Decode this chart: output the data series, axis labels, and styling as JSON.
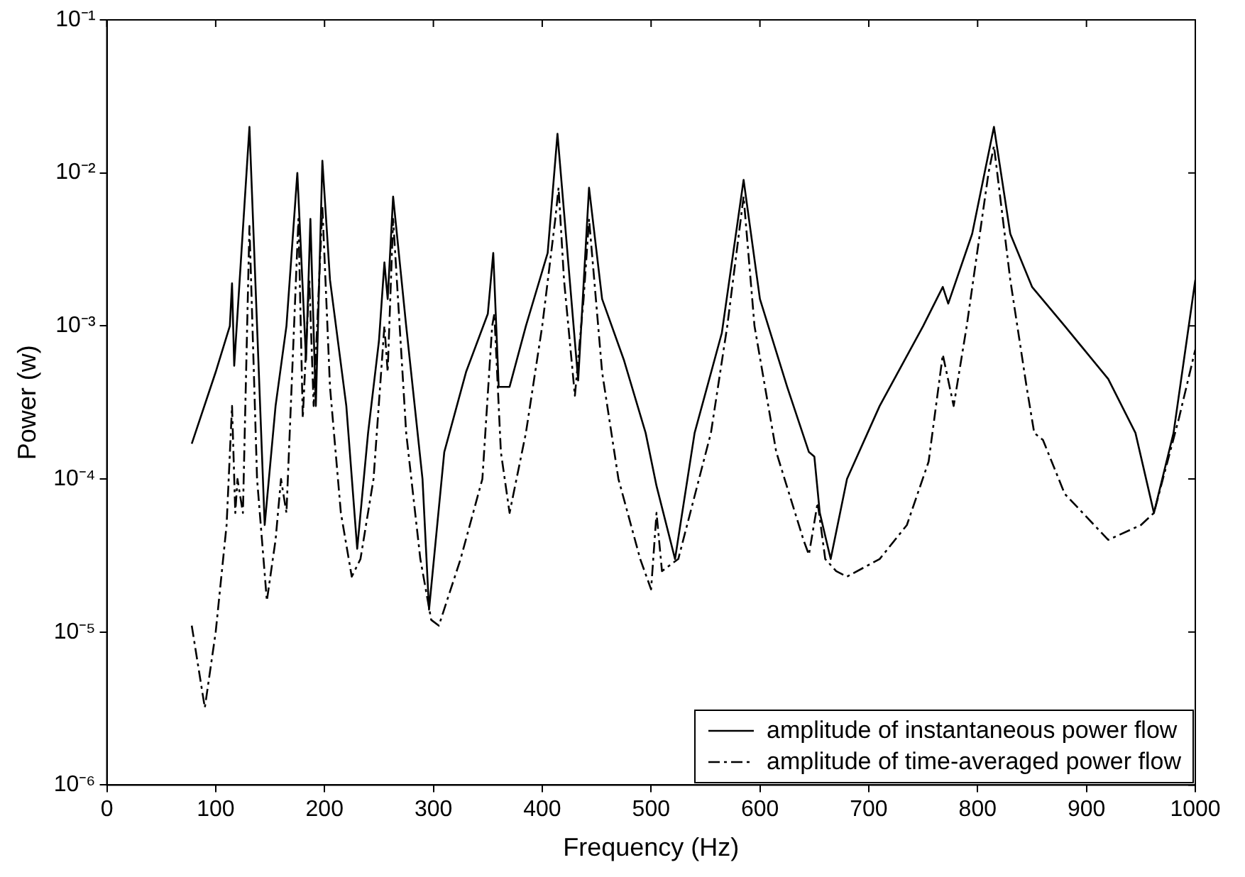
{
  "chart_data": {
    "type": "line",
    "xlabel": "Frequency (Hz)",
    "ylabel": "Power (w)",
    "log": "y",
    "grid": false,
    "legend": "bottom right",
    "marker": "none",
    "xlim": [
      0,
      1000
    ],
    "xticks": [
      0,
      100,
      200,
      300,
      400,
      500,
      600,
      700,
      800,
      900,
      1000
    ],
    "ylim": [
      1e-06,
      0.1
    ],
    "yticks": [
      {
        "value": 1e-06,
        "label": "10⁻⁶"
      },
      {
        "value": 1e-05,
        "label": "10⁻⁵"
      },
      {
        "value": 0.0001,
        "label": "10⁻⁴"
      },
      {
        "value": 0.001,
        "label": "10⁻³"
      },
      {
        "value": 0.01,
        "label": "10⁻²"
      },
      {
        "value": 0.1,
        "label": "10⁻¹"
      }
    ],
    "series": [
      {
        "name": "amplitude of instantaneous power flow",
        "color": "#000000",
        "line_style": "solid",
        "x": [
          78,
          100,
          113,
          115,
          117,
          131,
          145,
          155,
          165,
          175,
          183,
          187,
          192,
          198,
          205,
          220,
          230,
          240,
          250,
          255,
          258,
          263,
          275,
          290,
          296,
          310,
          330,
          350,
          355,
          360,
          370,
          385,
          405,
          414,
          433,
          443,
          455,
          475,
          495,
          505,
          522,
          540,
          565,
          585,
          600,
          625,
          645,
          650,
          655,
          665,
          680,
          710,
          750,
          768,
          773,
          795,
          815,
          830,
          850,
          880,
          920,
          945,
          962,
          980,
          1000
        ],
        "values": [
          0.00017,
          0.0005,
          0.001,
          0.0019,
          0.00055,
          0.02,
          5e-05,
          0.0003,
          0.001,
          0.01,
          0.0006,
          0.005,
          0.0003,
          0.012,
          0.002,
          0.0003,
          3.5e-05,
          0.0002,
          0.0008,
          0.0026,
          0.0015,
          0.007,
          0.001,
          0.0001,
          1.4e-05,
          0.00015,
          0.0005,
          0.0012,
          0.003,
          0.0004,
          0.0004,
          0.001,
          0.003,
          0.018,
          0.00044,
          0.008,
          0.0015,
          0.0006,
          0.0002,
          9e-05,
          3e-05,
          0.0002,
          0.0009,
          0.009,
          0.0015,
          0.0004,
          0.00015,
          0.00014,
          6e-05,
          3e-05,
          0.0001,
          0.0003,
          0.001,
          0.0018,
          0.0014,
          0.004,
          0.02,
          0.004,
          0.0018,
          0.001,
          0.00045,
          0.0002,
          6e-05,
          0.0002,
          0.002
        ]
      },
      {
        "name": "amplitude of time-averaged power flow",
        "color": "#000000",
        "line_style": "dashdot",
        "x": [
          78,
          90,
          100,
          110,
          115,
          118,
          120,
          125,
          131,
          138,
          147,
          155,
          160,
          165,
          172,
          176,
          180,
          186,
          190,
          198,
          205,
          215,
          225,
          233,
          245,
          255,
          258,
          263,
          275,
          288,
          298,
          305,
          325,
          345,
          354,
          356,
          362,
          370,
          385,
          400,
          412,
          415,
          420,
          430,
          438,
          443,
          455,
          470,
          490,
          500,
          505,
          510,
          525,
          555,
          570,
          585,
          595,
          615,
          640,
          645,
          653,
          660,
          670,
          680,
          710,
          735,
          755,
          768,
          778,
          790,
          810,
          815,
          830,
          845,
          852,
          860,
          880,
          920,
          950,
          962,
          985,
          1000
        ],
        "values": [
          1.1e-05,
          3.2e-06,
          1e-05,
          5e-05,
          0.0003,
          6e-05,
          0.0001,
          6e-05,
          0.0045,
          0.0001,
          1.6e-05,
          4e-05,
          0.0001,
          6e-05,
          0.001,
          0.005,
          0.00025,
          0.002,
          0.0003,
          0.006,
          0.0004,
          6e-05,
          2.3e-05,
          3e-05,
          0.0001,
          0.001,
          0.0005,
          0.005,
          0.0002,
          3e-05,
          1.2e-05,
          1.1e-05,
          3e-05,
          0.0001,
          0.001,
          0.0012,
          0.00015,
          6e-05,
          0.0002,
          0.001,
          0.005,
          0.008,
          0.002,
          0.00035,
          0.0015,
          0.005,
          0.0005,
          0.0001,
          3e-05,
          1.9e-05,
          6e-05,
          2.5e-05,
          3e-05,
          0.0002,
          0.001,
          0.007,
          0.001,
          0.00015,
          4e-05,
          3.2e-05,
          7e-05,
          3e-05,
          2.5e-05,
          2.3e-05,
          3e-05,
          5e-05,
          0.00013,
          0.00065,
          0.0003,
          0.001,
          0.01,
          0.015,
          0.002,
          0.0004,
          0.0002,
          0.00018,
          8e-05,
          4e-05,
          5e-05,
          6e-05,
          0.00025,
          0.0007
        ]
      }
    ]
  }
}
